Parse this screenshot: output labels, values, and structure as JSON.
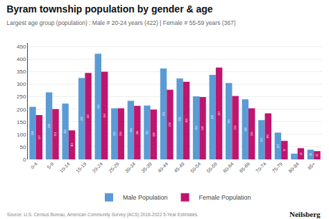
{
  "chart_data": {
    "type": "bar",
    "title": "Byram township population by gender & age",
    "subtitle": "Largest age group (population) : Male # 20-24 years (422) | Female # 55-59 years (367)",
    "annotations": [
      "Source: U.S. Census Bureau, American Community Survey (ACS) 2018-2022 5-Year Estimates",
      "Neilsberg"
    ],
    "categories": [
      "0-4",
      "5-9",
      "10-14",
      "15-19",
      "20-24",
      "25-29",
      "30-34",
      "35-39",
      "40-44",
      "45-49",
      "50-54",
      "55-59",
      "60-64",
      "65-69",
      "70-74",
      "75-79",
      "80-84",
      "85+"
    ],
    "series": [
      {
        "name": "Male Population",
        "color": "#5b9bd5",
        "values": [
          210,
          268,
          223,
          325,
          422,
          204,
          234,
          215,
          363,
          323,
          252,
          338,
          305,
          240,
          157,
          107,
          23,
          39
        ]
      },
      {
        "name": "Female Population",
        "color": "#c0156e",
        "values": [
          177,
          201,
          116,
          345,
          350,
          204,
          214,
          199,
          278,
          310,
          249,
          367,
          253,
          204,
          184,
          74,
          45,
          33
        ]
      }
    ],
    "ylim": [
      0,
      465
    ],
    "yticks": [
      0,
      50,
      100,
      150,
      200,
      250,
      300,
      350,
      400,
      450
    ],
    "grid": true,
    "data_labels": true,
    "legend": "bottom"
  }
}
